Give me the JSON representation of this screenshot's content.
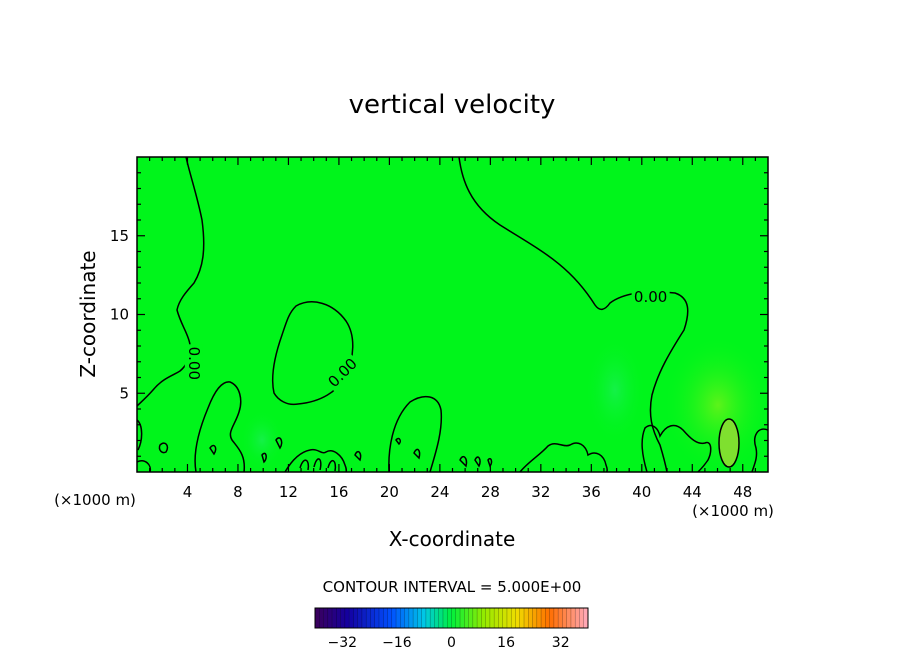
{
  "chart_data": {
    "type": "heatmap",
    "title": "vertical velocity",
    "xlabel": "X-coordinate",
    "ylabel": "Z-coordinate",
    "x_unit_left": "(×1000 m)",
    "x_unit_right": "(×1000 m)",
    "xlim": [
      0,
      50
    ],
    "ylim": [
      0,
      20
    ],
    "x_ticks": [
      4,
      8,
      12,
      16,
      20,
      24,
      28,
      32,
      36,
      40,
      44,
      48
    ],
    "y_ticks": [
      5,
      10,
      15
    ],
    "contour_interval_text": "CONTOUR INTERVAL = 5.000E+00",
    "contour_labels": [
      {
        "text": "0.00",
        "x": 4.5,
        "y": 6.9,
        "angle": 90
      },
      {
        "text": "0.00",
        "x": 16.3,
        "y": 6.3,
        "angle": -45
      },
      {
        "text": "0.00",
        "x": 40.7,
        "y": 11.1,
        "angle": 0
      }
    ],
    "colorbar": {
      "min": -40,
      "max": 40,
      "ticks": [
        -32,
        -16,
        0,
        16,
        32
      ]
    },
    "colors": {
      "field": "#00f51b",
      "contour": "#000000",
      "frame": "#000000"
    }
  }
}
